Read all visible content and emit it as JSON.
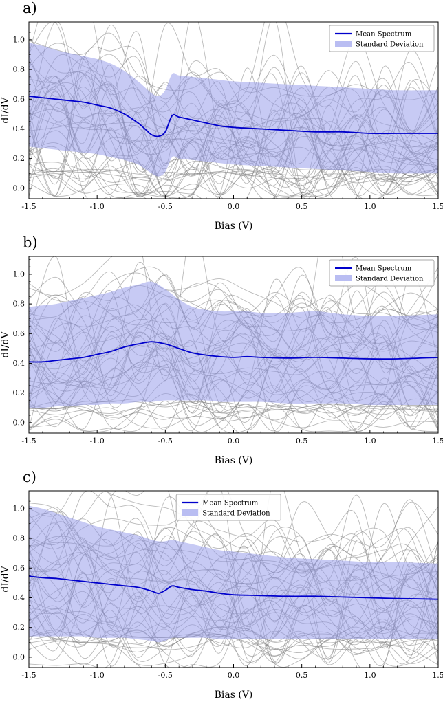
{
  "figure": {
    "background": "#ffffff",
    "colors": {
      "mean_line": "#0000cc",
      "band_fill": "#8f96ea",
      "band_legend_patch": "#b9bdf2",
      "individual_spectra": "#808080",
      "axis": "#000000"
    },
    "legend": {
      "mean_label": "Mean Spectrum",
      "std_label": "Standard Deviation"
    }
  },
  "chart_data": [
    {
      "type": "line",
      "panel_label": "a)",
      "xlabel": "Bias (V)",
      "ylabel": "dI/dV",
      "xlim": [
        -1.5,
        1.5
      ],
      "ylim": [
        -0.07,
        1.12
      ],
      "xticks": [
        -1.5,
        -1.0,
        -0.5,
        0.0,
        0.5,
        1.0,
        1.5
      ],
      "yticks": [
        0.0,
        0.2,
        0.4,
        0.6,
        0.8,
        1.0
      ],
      "grid": false,
      "legend_entries": [
        "Mean Spectrum",
        "Standard Deviation"
      ],
      "legend_position": "top-right",
      "n_individual_spectra": 45,
      "x": [
        -1.5,
        -1.4,
        -1.3,
        -1.2,
        -1.1,
        -1.0,
        -0.9,
        -0.8,
        -0.7,
        -0.65,
        -0.6,
        -0.55,
        -0.5,
        -0.45,
        -0.4,
        -0.3,
        -0.2,
        -0.1,
        0.0,
        0.2,
        0.4,
        0.6,
        0.8,
        1.0,
        1.2,
        1.5
      ],
      "mean": [
        0.62,
        0.61,
        0.6,
        0.59,
        0.58,
        0.56,
        0.54,
        0.5,
        0.44,
        0.4,
        0.36,
        0.35,
        0.38,
        0.49,
        0.48,
        0.46,
        0.44,
        0.42,
        0.41,
        0.4,
        0.39,
        0.38,
        0.38,
        0.37,
        0.37,
        0.37
      ],
      "std_upper": [
        0.98,
        0.96,
        0.93,
        0.91,
        0.89,
        0.87,
        0.84,
        0.79,
        0.72,
        0.68,
        0.64,
        0.62,
        0.66,
        0.77,
        0.76,
        0.75,
        0.74,
        0.73,
        0.72,
        0.71,
        0.7,
        0.69,
        0.68,
        0.67,
        0.66,
        0.66
      ],
      "std_lower": [
        0.28,
        0.27,
        0.26,
        0.25,
        0.24,
        0.23,
        0.21,
        0.19,
        0.16,
        0.13,
        0.1,
        0.08,
        0.11,
        0.21,
        0.2,
        0.19,
        0.18,
        0.17,
        0.16,
        0.15,
        0.14,
        0.13,
        0.12,
        0.11,
        0.1,
        0.1
      ]
    },
    {
      "type": "line",
      "panel_label": "b)",
      "xlabel": "Bias (V)",
      "ylabel": "dI/dV",
      "xlim": [
        -1.5,
        1.5
      ],
      "ylim": [
        -0.07,
        1.12
      ],
      "xticks": [
        -1.5,
        -1.0,
        -0.5,
        0.0,
        0.5,
        1.0,
        1.5
      ],
      "yticks": [
        0.0,
        0.2,
        0.4,
        0.6,
        0.8,
        1.0
      ],
      "grid": false,
      "legend_entries": [
        "Mean Spectrum",
        "Standard Deviation"
      ],
      "legend_position": "top-right",
      "n_individual_spectra": 45,
      "x": [
        -1.5,
        -1.4,
        -1.3,
        -1.2,
        -1.1,
        -1.0,
        -0.9,
        -0.8,
        -0.7,
        -0.6,
        -0.5,
        -0.4,
        -0.3,
        -0.2,
        -0.1,
        0.0,
        0.1,
        0.2,
        0.4,
        0.6,
        0.8,
        1.0,
        1.2,
        1.5
      ],
      "mean": [
        0.41,
        0.41,
        0.42,
        0.43,
        0.44,
        0.46,
        0.48,
        0.51,
        0.53,
        0.545,
        0.53,
        0.5,
        0.47,
        0.455,
        0.445,
        0.44,
        0.445,
        0.44,
        0.435,
        0.44,
        0.435,
        0.43,
        0.43,
        0.44
      ],
      "std_upper": [
        0.78,
        0.79,
        0.8,
        0.82,
        0.84,
        0.86,
        0.88,
        0.91,
        0.93,
        0.95,
        0.9,
        0.83,
        0.78,
        0.76,
        0.75,
        0.75,
        0.75,
        0.74,
        0.74,
        0.75,
        0.73,
        0.72,
        0.72,
        0.73
      ],
      "std_lower": [
        0.1,
        0.1,
        0.11,
        0.11,
        0.12,
        0.12,
        0.13,
        0.13,
        0.14,
        0.14,
        0.15,
        0.15,
        0.15,
        0.15,
        0.14,
        0.14,
        0.14,
        0.14,
        0.13,
        0.13,
        0.13,
        0.12,
        0.12,
        0.12
      ]
    },
    {
      "type": "line",
      "panel_label": "c)",
      "xlabel": "Bias (V)",
      "ylabel": "dI/dV",
      "xlim": [
        -1.5,
        1.5
      ],
      "ylim": [
        -0.07,
        1.12
      ],
      "xticks": [
        -1.5,
        -1.0,
        -0.5,
        0.0,
        0.5,
        1.0,
        1.5
      ],
      "yticks": [
        0.0,
        0.2,
        0.4,
        0.6,
        0.8,
        1.0
      ],
      "grid": false,
      "legend_entries": [
        "Mean Spectrum",
        "Standard Deviation"
      ],
      "legend_position": "top-center",
      "n_individual_spectra": 45,
      "x": [
        -1.5,
        -1.4,
        -1.3,
        -1.2,
        -1.1,
        -1.0,
        -0.9,
        -0.8,
        -0.7,
        -0.6,
        -0.55,
        -0.5,
        -0.45,
        -0.4,
        -0.3,
        -0.2,
        -0.1,
        0.0,
        0.2,
        0.4,
        0.6,
        0.8,
        1.0,
        1.2,
        1.5
      ],
      "mean": [
        0.545,
        0.535,
        0.53,
        0.52,
        0.51,
        0.5,
        0.49,
        0.48,
        0.47,
        0.445,
        0.43,
        0.45,
        0.48,
        0.47,
        0.455,
        0.445,
        0.43,
        0.42,
        0.415,
        0.41,
        0.41,
        0.405,
        0.4,
        0.395,
        0.39
      ],
      "std_upper": [
        1.02,
        1.0,
        0.97,
        0.94,
        0.91,
        0.88,
        0.86,
        0.84,
        0.82,
        0.79,
        0.78,
        0.78,
        0.79,
        0.78,
        0.76,
        0.74,
        0.72,
        0.71,
        0.69,
        0.67,
        0.66,
        0.65,
        0.64,
        0.64,
        0.63
      ],
      "std_lower": [
        0.14,
        0.14,
        0.14,
        0.14,
        0.14,
        0.13,
        0.13,
        0.13,
        0.12,
        0.11,
        0.1,
        0.11,
        0.13,
        0.13,
        0.13,
        0.13,
        0.12,
        0.12,
        0.12,
        0.12,
        0.12,
        0.12,
        0.12,
        0.12,
        0.12
      ]
    }
  ]
}
